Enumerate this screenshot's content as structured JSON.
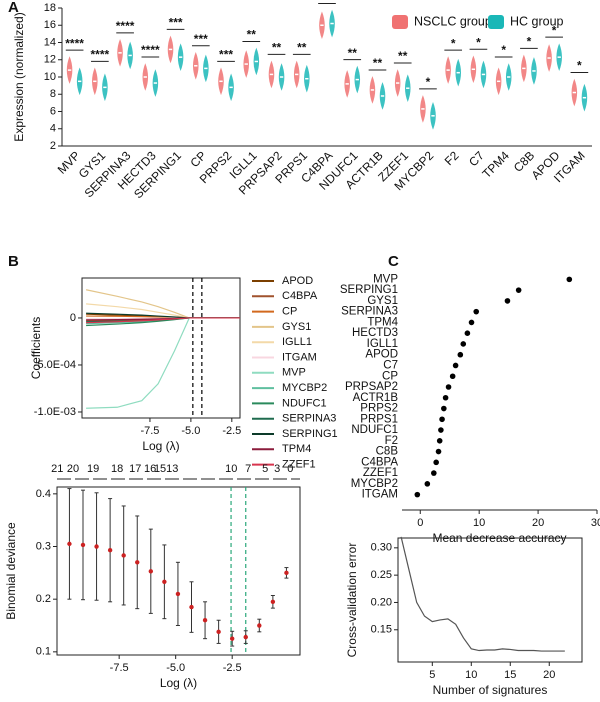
{
  "chart_data": [
    {
      "type": "violin",
      "panel": "A",
      "ylabel": "Expression (normalized)",
      "categories": [
        "MVP",
        "GYS1",
        "SERPINA3",
        "HECTD3",
        "SERPING1",
        "CP",
        "PRPS2",
        "IGLL1",
        "PRPSAP2",
        "PRPS1",
        "C4BPA",
        "NDUFC1",
        "ACTR1B",
        "ZZEF1",
        "MYCBP2",
        "F2",
        "C7",
        "TPM4",
        "C8B",
        "APOD",
        "ITGAM"
      ],
      "series": [
        {
          "name": "NSCLC group",
          "color": "#f07272",
          "values": [
            10.8,
            9.5,
            12.8,
            10,
            13.2,
            11.3,
            9.5,
            11.5,
            10.3,
            10.3,
            16,
            9.2,
            8.5,
            9.3,
            6.3,
            10.8,
            10.9,
            9.5,
            11,
            12.2,
            8.2
          ]
        },
        {
          "name": "HC group",
          "color": "#1ab7b7",
          "values": [
            9.5,
            8.8,
            12.5,
            9.3,
            12.3,
            11,
            8.8,
            11.8,
            10,
            9.8,
            16.2,
            9.7,
            7.8,
            8.7,
            5.5,
            10.5,
            10.3,
            10,
            10.7,
            12.3,
            7.6
          ]
        }
      ],
      "significance": [
        "****",
        "****",
        "****",
        "****",
        "***",
        "***",
        "***",
        "**",
        "**",
        "**",
        "**",
        "**",
        "**",
        "**",
        "*",
        "*",
        "*",
        "*",
        "*",
        "*",
        "*"
      ],
      "ylim": [
        2,
        18
      ],
      "yticks": [
        2,
        4,
        6,
        8,
        10,
        12,
        14,
        16,
        18
      ]
    },
    {
      "type": "line",
      "panel": "B",
      "xlabel": "Log (λ)",
      "ylabel": "Coefficients",
      "x": [
        -11.4,
        -9.5,
        -8,
        -7,
        -6,
        -5.1,
        -2.0
      ],
      "series": [
        {
          "name": "APOD",
          "color": "#7b3f00",
          "values": [
            4e-05,
            3e-05,
            2e-05,
            1.5e-05,
            8e-06,
            0,
            0
          ]
        },
        {
          "name": "C4BPA",
          "color": "#a0522d",
          "values": [
            -3e-05,
            -2.5e-05,
            -2e-05,
            -1.5e-05,
            -8e-06,
            0,
            0
          ]
        },
        {
          "name": "CP",
          "color": "#d2691e",
          "values": [
            2e-05,
            1.8e-05,
            1.4e-05,
            1e-05,
            5e-06,
            0,
            0
          ]
        },
        {
          "name": "GYS1",
          "color": "#e3c58a",
          "values": [
            0.0003,
            0.00023,
            0.00017,
            0.00012,
            6e-05,
            0,
            0
          ]
        },
        {
          "name": "IGLL1",
          "color": "#f3d9a8",
          "values": [
            0.00015,
            0.00012,
            9e-05,
            6e-05,
            3e-05,
            0,
            0
          ]
        },
        {
          "name": "ITGAM",
          "color": "#f8d7e0",
          "values": [
            -1e-05,
            -8e-06,
            -6e-06,
            -4e-06,
            -2e-06,
            0,
            0
          ]
        },
        {
          "name": "MVP",
          "color": "#8fdcc0",
          "values": [
            -0.00096,
            -0.00095,
            -0.00088,
            -0.0007,
            -0.00035,
            0,
            0
          ]
        },
        {
          "name": "MYCBP2",
          "color": "#5fbf9f",
          "values": [
            -6e-05,
            -5e-05,
            -4e-05,
            -3e-05,
            -1.5e-05,
            0,
            0
          ]
        },
        {
          "name": "NDUFC1",
          "color": "#2a8a5c",
          "values": [
            -8e-05,
            -6.5e-05,
            -5e-05,
            -3.5e-05,
            -1.8e-05,
            0,
            0
          ]
        },
        {
          "name": "SERPINA3",
          "color": "#1f6b4e",
          "values": [
            -4e-05,
            -3.5e-05,
            -3e-05,
            -2e-05,
            -1e-05,
            0,
            0
          ]
        },
        {
          "name": "SERPING1",
          "color": "#0d3b2a",
          "values": [
            5e-05,
            4e-05,
            3e-05,
            2e-05,
            1e-05,
            0,
            0
          ]
        },
        {
          "name": "TPM4",
          "color": "#8b1c3c",
          "values": [
            -2e-05,
            -1.8e-05,
            -1.4e-05,
            -1e-05,
            -5e-06,
            0,
            0
          ]
        },
        {
          "name": "ZZEF1",
          "color": "#d7344e",
          "values": [
            -5e-05,
            -4e-05,
            -3e-05,
            -2e-05,
            -1e-05,
            0,
            0
          ]
        }
      ],
      "vlines": [
        -4.88,
        -4.33
      ],
      "vline_color": "#000000",
      "xlim": [
        -11.65,
        -2.0
      ],
      "xticks": [
        -7.5,
        {
          "value": -5,
          "label": "-5.0"
        },
        -2.5
      ],
      "ylim": [
        -0.001064,
        0.000425
      ],
      "yticks": [
        {
          "value": -0.001,
          "label": "-1.0E-03"
        },
        {
          "value": -0.0005,
          "label": "-5.0E-04"
        },
        0
      ]
    },
    {
      "type": "errorbar",
      "xlabel": "Log (λ)",
      "ylabel": "Binomial deviance",
      "color": "#cc2222",
      "x": [
        -9.7,
        -9.1,
        -8.5,
        -7.9,
        -7.3,
        -6.7,
        -6.1,
        -5.5,
        -4.9,
        -4.3,
        -3.7,
        -3.1,
        -2.5,
        -1.9,
        -1.3,
        -0.7,
        -0.1
      ],
      "values": [
        0.305,
        0.303,
        0.3,
        0.293,
        0.283,
        0.27,
        0.253,
        0.233,
        0.21,
        0.185,
        0.16,
        0.138,
        0.125,
        0.128,
        0.15,
        0.195,
        0.25
      ],
      "errors": [
        0.105,
        0.104,
        0.102,
        0.098,
        0.094,
        0.088,
        0.08,
        0.07,
        0.06,
        0.048,
        0.035,
        0.022,
        0.014,
        0.012,
        0.012,
        0.012,
        0.01
      ],
      "nonzero_x": [
        -10.24,
        -9.54,
        -8.65,
        -7.59,
        -6.79,
        -6.13,
        -5.69,
        -5.15,
        -2.54,
        -1.79,
        -1.04,
        -0.51,
        0.07
      ],
      "nonzero_counts": [
        21,
        20,
        19,
        18,
        17,
        16,
        15,
        13,
        10,
        7,
        5,
        3,
        0
      ],
      "vlines": [
        -2.55,
        -1.9
      ],
      "vline_color": "#2aa87a",
      "xlim": [
        -10.25,
        0.5
      ],
      "xticks": [
        -7.5,
        {
          "value": -5,
          "label": "-5.0"
        },
        -2.5
      ],
      "ylim": [
        0.094,
        0.413
      ],
      "yticks": [
        0.1,
        0.2,
        0.3,
        0.4
      ]
    },
    {
      "type": "dot",
      "panel": "C",
      "xlabel": "Mean decrease accuracy",
      "color": "#000000",
      "categories": [
        "MVP",
        "SERPING1",
        "GYS1",
        "SERPINA3",
        "TPM4",
        "HECTD3",
        "IGLL1",
        "APOD",
        "C7",
        "CP",
        "PRPSAP2",
        "ACTR1B",
        "PRPS2",
        "PRPS1",
        "NDUFC1",
        "F2",
        "C8B",
        "C4BPA",
        "ZZEF1",
        "MYCBP2",
        "ITGAM"
      ],
      "values": [
        25.3,
        16.7,
        14.8,
        9.5,
        8.7,
        8,
        7.3,
        6.8,
        6,
        5.5,
        4.8,
        4.3,
        4,
        3.7,
        3.5,
        3.3,
        3.1,
        2.7,
        2.3,
        1.2,
        -0.5
      ],
      "xlim": [
        -3.1,
        30
      ],
      "xticks": [
        0,
        10,
        20,
        30
      ]
    },
    {
      "type": "line",
      "xlabel": "Number of signatures",
      "ylabel": "Cross-validation error",
      "x": [
        1,
        2,
        3,
        4,
        5,
        6,
        7,
        8,
        9,
        10,
        11,
        12,
        13,
        14,
        15,
        16,
        17,
        18,
        19,
        20,
        21,
        22
      ],
      "series": [
        {
          "color": "#555555",
          "values": [
            0.32,
            0.26,
            0.2,
            0.175,
            0.165,
            0.168,
            0.17,
            0.16,
            0.135,
            0.115,
            0.112,
            0.113,
            0.113,
            0.115,
            0.114,
            0.112,
            0.112,
            0.112,
            0.111,
            0.111,
            0.111,
            0.111
          ]
        }
      ],
      "xlim": [
        0.6,
        24.2
      ],
      "xticks": [
        5,
        10,
        15,
        20
      ],
      "ylim": [
        0.091,
        0.318
      ],
      "yticks": [
        0.15,
        {
          "value": 0.2,
          "label": "0.20"
        },
        0.25,
        {
          "value": 0.3,
          "label": "0.30"
        }
      ]
    }
  ]
}
